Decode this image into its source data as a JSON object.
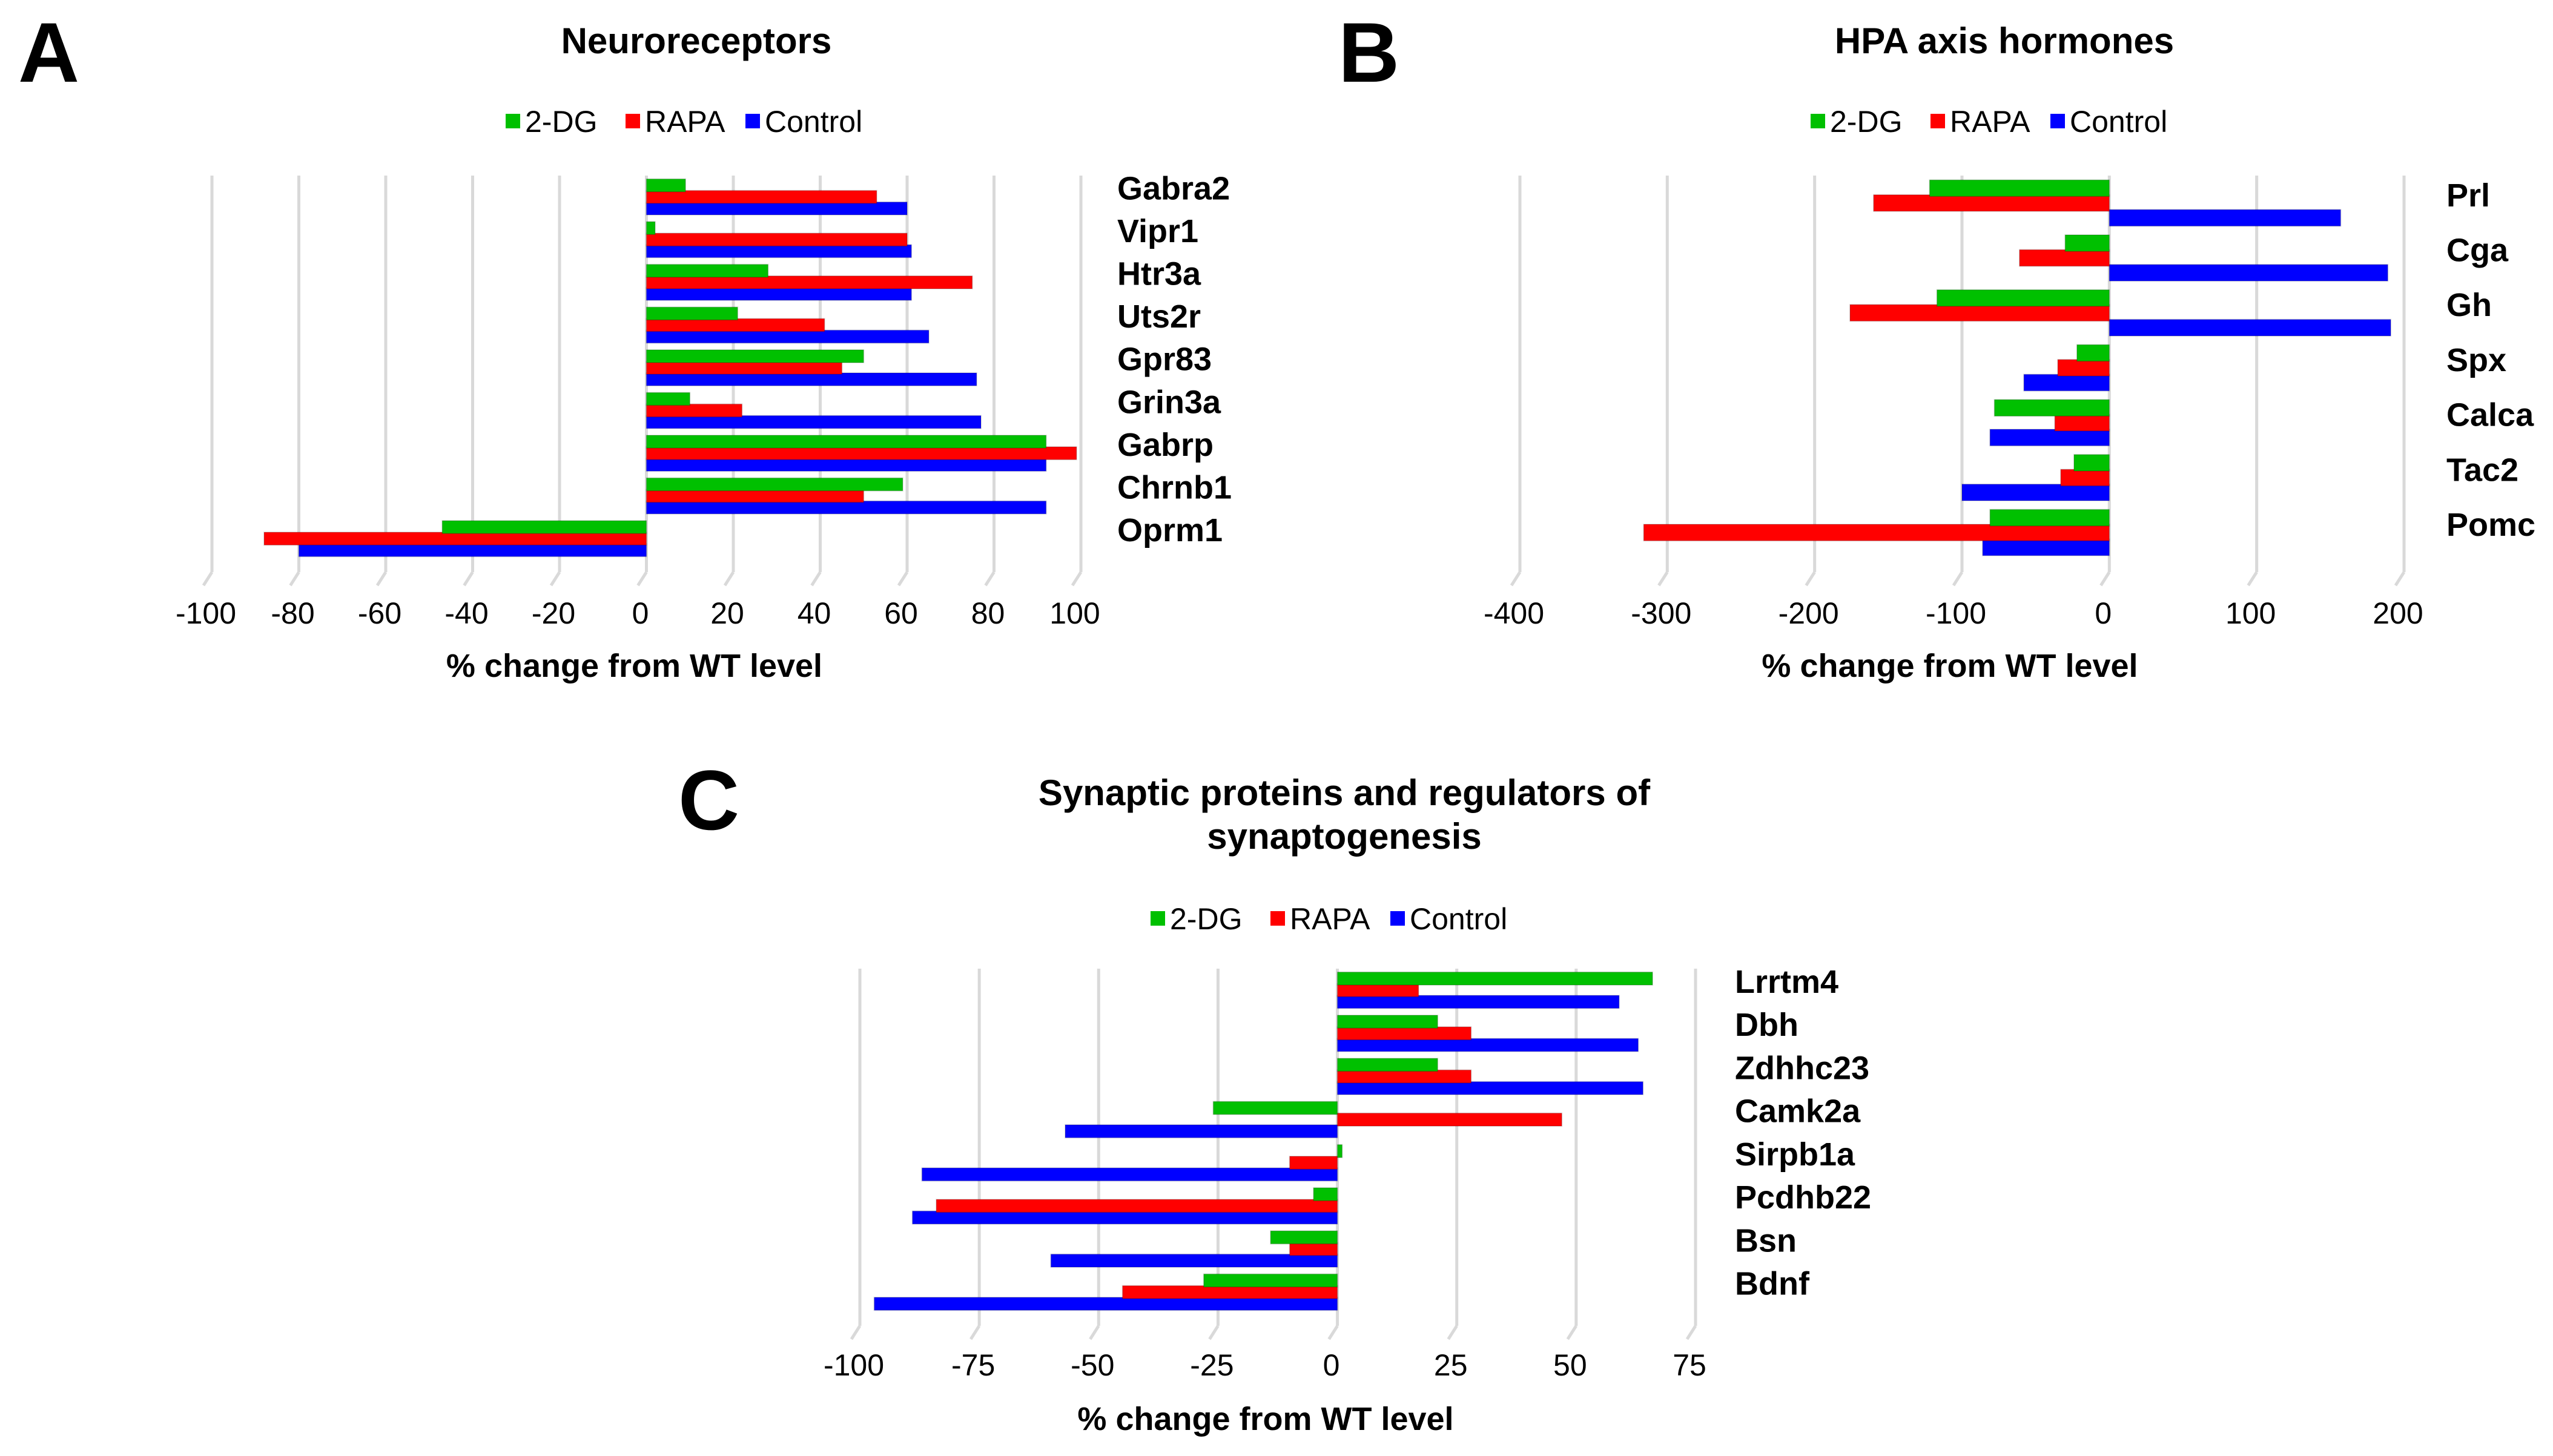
{
  "colors": {
    "2-DG": "#00c000",
    "RAPA": "#ff0000",
    "Control": "#0000ff",
    "grid": "#d9d9d9"
  },
  "chart_data": [
    {
      "panel": "A",
      "type": "bar",
      "orientation": "horizontal",
      "title": "Neuroreceptors",
      "xlabel": "% change from WT level",
      "ylabel": "",
      "xlim": [
        -100,
        100
      ],
      "xticks": [
        -100,
        -80,
        -60,
        -40,
        -20,
        0,
        20,
        40,
        60,
        80,
        100
      ],
      "grid": true,
      "legend": [
        "2-DG",
        "RAPA",
        "Control"
      ],
      "legend_position": "top",
      "categories": [
        "Gabra2",
        "Vipr1",
        "Htr3a",
        "Uts2r",
        "Gpr83",
        "Grin3a",
        "Gabrp",
        "Chrnb1",
        "Oprm1"
      ],
      "series": [
        {
          "name": "2-DG",
          "values": [
            9,
            2,
            28,
            21,
            50,
            10,
            92,
            59,
            -47
          ]
        },
        {
          "name": "RAPA",
          "values": [
            53,
            60,
            75,
            41,
            45,
            22,
            99,
            50,
            -88
          ]
        },
        {
          "name": "Control",
          "values": [
            60,
            61,
            61,
            65,
            76,
            77,
            92,
            92,
            -80
          ]
        }
      ]
    },
    {
      "panel": "B",
      "type": "bar",
      "orientation": "horizontal",
      "title": "HPA axis hormones",
      "xlabel": "% change from WT level",
      "ylabel": "",
      "xlim": [
        -400,
        200
      ],
      "xticks": [
        -400,
        -300,
        -200,
        -100,
        0,
        100,
        200
      ],
      "grid": true,
      "legend": [
        "2-DG",
        "RAPA",
        "Control"
      ],
      "legend_position": "top",
      "categories": [
        "Prl",
        "Cga",
        "Gh",
        "Spx",
        "Calca",
        "Tac2",
        "Pomc"
      ],
      "series": [
        {
          "name": "2-DG",
          "values": [
            -122,
            -30,
            -117,
            -22,
            -78,
            -24,
            -81
          ]
        },
        {
          "name": "RAPA",
          "values": [
            -160,
            -61,
            -176,
            -35,
            -37,
            -33,
            -316
          ]
        },
        {
          "name": "Control",
          "values": [
            157,
            189,
            191,
            -58,
            -81,
            -100,
            -86
          ]
        }
      ]
    },
    {
      "panel": "C",
      "type": "bar",
      "orientation": "horizontal",
      "title": [
        "Synaptic proteins and regulators of",
        "synaptogenesis"
      ],
      "xlabel": "% change from WT level",
      "ylabel": "",
      "xlim": [
        -100,
        75
      ],
      "xticks": [
        -100,
        -75,
        -50,
        -25,
        0,
        25,
        50,
        75
      ],
      "grid": true,
      "legend": [
        "2-DG",
        "RAPA",
        "Control"
      ],
      "legend_position": "top",
      "categories": [
        "Lrrtm4",
        "Dbh",
        "Zdhhc23",
        "Camk2a",
        "Sirpb1a",
        "Pcdhb22",
        "Bsn",
        "Bdnf"
      ],
      "series": [
        {
          "name": "2-DG",
          "values": [
            66,
            21,
            21,
            -26,
            1,
            -5,
            -14,
            -28
          ]
        },
        {
          "name": "RAPA",
          "values": [
            17,
            28,
            28,
            47,
            -10,
            -84,
            -10,
            -45
          ]
        },
        {
          "name": "Control",
          "values": [
            59,
            63,
            64,
            -57,
            -87,
            -89,
            -60,
            -97
          ]
        }
      ]
    }
  ]
}
